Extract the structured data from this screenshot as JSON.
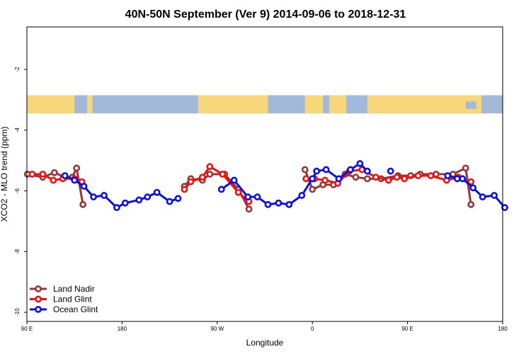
{
  "chart_data": {
    "type": "line",
    "title": "40N-50N September (Ver 9)   2014-09-06 to 2018-12-31",
    "xlabel": "Longitude",
    "ylabel": "XCO2 - MLO trend (ppm)",
    "x_ticks": [
      {
        "value": 90,
        "label": "90 E"
      },
      {
        "value": 180,
        "label": "180"
      },
      {
        "value": 270,
        "label": "90 W"
      },
      {
        "value": 360,
        "label": "0"
      },
      {
        "value": 450,
        "label": "90 E"
      },
      {
        "value": 540,
        "label": "180"
      }
    ],
    "y_ticks": [
      {
        "value": -2,
        "label": "-2"
      },
      {
        "value": -4,
        "label": "-4"
      },
      {
        "value": -6,
        "label": "-6"
      },
      {
        "value": -8,
        "label": "-8"
      },
      {
        "value": -10,
        "label": "-10"
      }
    ],
    "xlim": [
      90,
      540
    ],
    "ylim": [
      -10.3,
      -0.6
    ],
    "map_strip": {
      "y_top": -2.85,
      "y_bottom": -3.45,
      "land_color": "#f7d77a",
      "ocean_color": "#a3b9dc"
    },
    "legend": {
      "position": "bottom-left"
    },
    "series": [
      {
        "name": "Land Nadir",
        "color": "#983535",
        "segments": [
          [
            [
              90.5,
              -5.45
            ],
            [
              105,
              -5.55
            ],
            [
              116,
              -5.4
            ],
            [
              126,
              -5.55
            ],
            [
              133,
              -5.55
            ],
            [
              137,
              -5.25
            ],
            [
              143,
              -6.45
            ]
          ],
          [
            [
              239,
              -5.85
            ],
            [
              245,
              -5.6
            ],
            [
              256,
              -5.65
            ],
            [
              263,
              -5.45
            ],
            [
              277,
              -5.45
            ],
            [
              290,
              -5.95
            ],
            [
              300,
              -6.6
            ]
          ],
          [
            [
              353,
              -5.3
            ],
            [
              360,
              -5.95
            ],
            [
              370,
              -5.8
            ],
            [
              380,
              -5.8
            ],
            [
              391,
              -5.45
            ],
            [
              401,
              -5.55
            ],
            [
              412,
              -5.6
            ],
            [
              425,
              -5.6
            ],
            [
              441,
              -5.5
            ],
            [
              453,
              -5.5
            ],
            [
              462,
              -5.45
            ],
            [
              477,
              -5.45
            ],
            [
              493,
              -5.45
            ],
            [
              505,
              -5.25
            ],
            [
              510,
              -6.45
            ]
          ]
        ]
      },
      {
        "name": "Land Glint",
        "color": "#f01010",
        "segments": [
          [
            [
              95,
              -5.45
            ],
            [
              105,
              -5.45
            ],
            [
              115,
              -5.65
            ],
            [
              124,
              -5.6
            ],
            [
              135,
              -5.6
            ],
            [
              142,
              -5.7
            ]
          ],
          [
            [
              239,
              -5.95
            ],
            [
              245,
              -5.7
            ],
            [
              256,
              -5.55
            ],
            [
              263,
              -5.2
            ],
            [
              275,
              -5.45
            ],
            [
              290,
              -6.05
            ],
            [
              300,
              -6.35
            ]
          ],
          [
            [
              354,
              -5.6
            ],
            [
              362,
              -5.6
            ],
            [
              372,
              -5.65
            ],
            [
              384,
              -5.75
            ],
            [
              395,
              -5.35
            ],
            [
              407,
              -5.3
            ],
            [
              420,
              -5.55
            ],
            [
              432,
              -5.65
            ],
            [
              440,
              -5.55
            ],
            [
              447,
              -5.6
            ],
            [
              460,
              -5.5
            ],
            [
              472,
              -5.5
            ],
            [
              487,
              -5.65
            ],
            [
              498,
              -5.55
            ],
            [
              510,
              -5.7
            ]
          ]
        ]
      },
      {
        "name": "Ocean Glint",
        "color": "#0a10e0",
        "segments": [
          [
            [
              126,
              -5.5
            ],
            [
              135,
              -5.65
            ],
            [
              144,
              -5.85
            ],
            [
              153,
              -6.2
            ],
            [
              163,
              -6.15
            ],
            [
              175,
              -6.55
            ],
            [
              183,
              -6.4
            ],
            [
              196,
              -6.3
            ],
            [
              204,
              -6.2
            ],
            [
              213,
              -6.05
            ],
            [
              225,
              -6.35
            ],
            [
              233,
              -6.25
            ]
          ],
          [
            [
              274,
              -5.95
            ],
            [
              286,
              -5.65
            ],
            [
              299,
              -6.2
            ],
            [
              308,
              -6.2
            ],
            [
              318,
              -6.45
            ],
            [
              328,
              -6.4
            ],
            [
              338,
              -6.45
            ],
            [
              350,
              -6.15
            ],
            [
              360,
              -5.6
            ],
            [
              364,
              -5.35
            ],
            [
              373,
              -5.3
            ],
            [
              385,
              -5.6
            ],
            [
              396,
              -5.3
            ],
            [
              405,
              -5.1
            ],
            [
              412,
              -5.35
            ]
          ],
          [
            [
              434,
              -5.35
            ]
          ],
          [
            [
              488,
              -5.5
            ],
            [
              497,
              -5.6
            ],
            [
              502,
              -5.6
            ],
            [
              512,
              -5.9
            ],
            [
              521,
              -6.2
            ],
            [
              532,
              -6.15
            ],
            [
              542,
              -6.55
            ]
          ]
        ]
      }
    ]
  }
}
